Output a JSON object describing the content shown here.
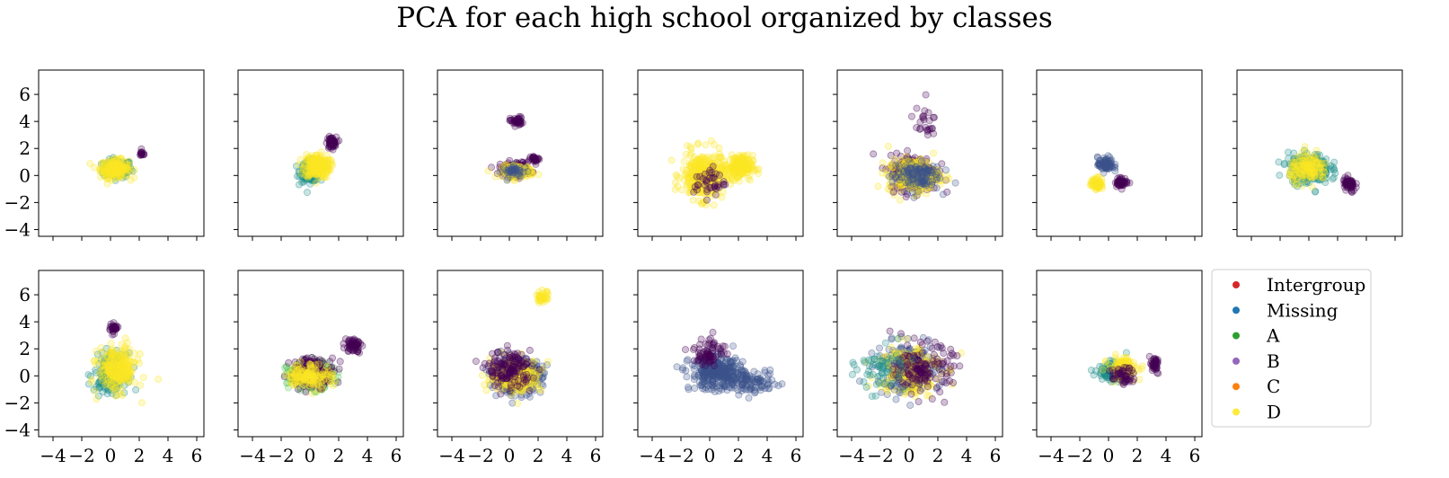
{
  "title": "PCA for each high school organized by classes",
  "chart_data": {
    "type": "scatter",
    "title": "PCA for each high school organized by classes",
    "layout": "2 rows x 7 columns, shared axes",
    "xlim": [
      -5,
      6.5
    ],
    "ylim": [
      -4.5,
      7.8
    ],
    "x_ticks": [
      "−4",
      "−2",
      "0",
      "2",
      "4",
      "6"
    ],
    "x_tick_values": [
      -4,
      -2,
      0,
      2,
      4,
      6
    ],
    "y_ticks": [
      "6",
      "4",
      "2",
      "0",
      "−2",
      "−4"
    ],
    "y_tick_values": [
      6,
      4,
      2,
      0,
      -2,
      -4
    ],
    "grid": false,
    "legend": {
      "placement": "right of last row",
      "entries": [
        {
          "name": "Intergroup",
          "color": "#d62728"
        },
        {
          "name": "Missing",
          "color": "#1f77b4"
        },
        {
          "name": "A",
          "color": "#2ca02c"
        },
        {
          "name": "B",
          "color": "#9467bd"
        },
        {
          "name": "C",
          "color": "#ff7f0e"
        },
        {
          "name": "D",
          "color": "#ffeb3b"
        }
      ]
    },
    "point_colors": {
      "purple": "#440154",
      "teal": "#21918c",
      "blue": "#3b528b",
      "green": "#5ec962",
      "yellow": "#fde725"
    },
    "panels": [
      {
        "clusters": [
          {
            "cx": 0.5,
            "cy": 0.5,
            "sx": 0.9,
            "sy": 0.6,
            "n": 160,
            "c": "teal"
          },
          {
            "cx": 0.3,
            "cy": 0.5,
            "sx": 0.9,
            "sy": 0.6,
            "n": 200,
            "c": "yellow"
          },
          {
            "cx": 2.2,
            "cy": 1.6,
            "sx": 0.2,
            "sy": 0.2,
            "n": 14,
            "c": "purple"
          }
        ]
      },
      {
        "clusters": [
          {
            "cx": 0.0,
            "cy": 0.3,
            "sx": 0.6,
            "sy": 0.7,
            "n": 160,
            "c": "teal"
          },
          {
            "cx": 1.5,
            "cy": 2.4,
            "sx": 0.3,
            "sy": 0.4,
            "n": 60,
            "c": "purple"
          },
          {
            "cx": 0.5,
            "cy": 0.7,
            "sx": 0.8,
            "sy": 0.8,
            "n": 220,
            "c": "yellow"
          }
        ]
      },
      {
        "clusters": [
          {
            "cx": 0.5,
            "cy": 4.0,
            "sx": 0.4,
            "sy": 0.3,
            "n": 40,
            "c": "purple"
          },
          {
            "cx": 1.8,
            "cy": 1.2,
            "sx": 0.3,
            "sy": 0.2,
            "n": 25,
            "c": "purple"
          },
          {
            "cx": 0.4,
            "cy": 0.5,
            "sx": 1.0,
            "sy": 0.5,
            "n": 120,
            "c": "purple"
          },
          {
            "cx": 0.6,
            "cy": 0.3,
            "sx": 1.0,
            "sy": 0.4,
            "n": 120,
            "c": "yellow"
          },
          {
            "cx": 0.4,
            "cy": 0.3,
            "sx": 0.8,
            "sy": 0.4,
            "n": 40,
            "c": "blue"
          }
        ]
      },
      {
        "clusters": [
          {
            "cx": -0.5,
            "cy": 0.0,
            "sx": 1.3,
            "sy": 1.6,
            "n": 300,
            "c": "yellow"
          },
          {
            "cx": 2.0,
            "cy": 0.6,
            "sx": 0.9,
            "sy": 0.8,
            "n": 180,
            "c": "yellow"
          },
          {
            "cx": 0.0,
            "cy": -0.5,
            "sx": 1.0,
            "sy": 1.0,
            "n": 40,
            "c": "purple"
          }
        ]
      },
      {
        "clusters": [
          {
            "cx": 0.3,
            "cy": 0.2,
            "sx": 1.5,
            "sy": 1.2,
            "n": 260,
            "c": "purple"
          },
          {
            "cx": 0.3,
            "cy": 0.0,
            "sx": 1.6,
            "sy": 1.1,
            "n": 220,
            "c": "yellow"
          },
          {
            "cx": 0.5,
            "cy": 0.0,
            "sx": 1.5,
            "sy": 1.0,
            "n": 120,
            "c": "blue"
          },
          {
            "cx": 1.0,
            "cy": 4.0,
            "sx": 0.8,
            "sy": 1.0,
            "n": 25,
            "c": "purple"
          }
        ]
      },
      {
        "clusters": [
          {
            "cx": -0.2,
            "cy": 0.8,
            "sx": 0.5,
            "sy": 0.5,
            "n": 70,
            "c": "blue"
          },
          {
            "cx": -0.8,
            "cy": -0.6,
            "sx": 0.4,
            "sy": 0.4,
            "n": 60,
            "c": "yellow"
          },
          {
            "cx": 0.9,
            "cy": -0.5,
            "sx": 0.4,
            "sy": 0.3,
            "n": 50,
            "c": "purple"
          }
        ]
      },
      {
        "clusters": [
          {
            "cx": 0.0,
            "cy": 0.5,
            "sx": 1.3,
            "sy": 1.0,
            "n": 260,
            "c": "teal"
          },
          {
            "cx": 0.0,
            "cy": 0.5,
            "sx": 1.2,
            "sy": 0.9,
            "n": 140,
            "c": "yellow"
          },
          {
            "cx": 2.8,
            "cy": -0.7,
            "sx": 0.4,
            "sy": 0.5,
            "n": 60,
            "c": "purple"
          }
        ]
      },
      {
        "clusters": [
          {
            "cx": 0.0,
            "cy": 0.2,
            "sx": 1.0,
            "sy": 1.3,
            "n": 180,
            "c": "teal"
          },
          {
            "cx": 0.5,
            "cy": 0.5,
            "sx": 1.2,
            "sy": 1.5,
            "n": 240,
            "c": "yellow"
          },
          {
            "cx": 0.2,
            "cy": 3.5,
            "sx": 0.3,
            "sy": 0.3,
            "n": 30,
            "c": "purple"
          }
        ]
      },
      {
        "clusters": [
          {
            "cx": 0.0,
            "cy": 0.0,
            "sx": 1.4,
            "sy": 0.9,
            "n": 240,
            "c": "green"
          },
          {
            "cx": 0.2,
            "cy": 0.3,
            "sx": 1.4,
            "sy": 1.0,
            "n": 150,
            "c": "purple"
          },
          {
            "cx": 0.0,
            "cy": 0.0,
            "sx": 1.4,
            "sy": 0.8,
            "n": 140,
            "c": "yellow"
          },
          {
            "cx": 3.0,
            "cy": 2.3,
            "sx": 0.5,
            "sy": 0.5,
            "n": 60,
            "c": "purple"
          }
        ]
      },
      {
        "clusters": [
          {
            "cx": 0.5,
            "cy": 0.0,
            "sx": 1.6,
            "sy": 1.1,
            "n": 320,
            "c": "blue"
          },
          {
            "cx": 0.5,
            "cy": 0.0,
            "sx": 1.6,
            "sy": 1.1,
            "n": 220,
            "c": "yellow"
          },
          {
            "cx": 0.0,
            "cy": 0.5,
            "sx": 1.4,
            "sy": 1.2,
            "n": 150,
            "c": "purple"
          },
          {
            "cx": 2.3,
            "cy": 5.8,
            "sx": 0.4,
            "sy": 0.4,
            "n": 35,
            "c": "yellow"
          }
        ]
      },
      {
        "clusters": [
          {
            "cx": 0.5,
            "cy": 0.2,
            "sx": 1.7,
            "sy": 1.1,
            "n": 320,
            "c": "blue"
          },
          {
            "cx": 0.0,
            "cy": 1.8,
            "sx": 1.0,
            "sy": 1.0,
            "n": 70,
            "c": "purple"
          },
          {
            "cx": 3.0,
            "cy": -0.5,
            "sx": 1.5,
            "sy": 0.7,
            "n": 90,
            "c": "blue"
          }
        ]
      },
      {
        "clusters": [
          {
            "cx": 0.0,
            "cy": 0.5,
            "sx": 2.0,
            "sy": 1.7,
            "n": 200,
            "c": "blue"
          },
          {
            "cx": 0.0,
            "cy": 0.5,
            "sx": 2.0,
            "sy": 1.8,
            "n": 180,
            "c": "yellow"
          },
          {
            "cx": 1.0,
            "cy": 0.5,
            "sx": 1.8,
            "sy": 1.6,
            "n": 150,
            "c": "purple"
          },
          {
            "cx": -2.0,
            "cy": 0.5,
            "sx": 1.5,
            "sy": 1.5,
            "n": 60,
            "c": "teal"
          }
        ]
      },
      {
        "clusters": [
          {
            "cx": 0.3,
            "cy": 0.3,
            "sx": 0.9,
            "sy": 0.6,
            "n": 160,
            "c": "teal"
          },
          {
            "cx": 1.0,
            "cy": 0.6,
            "sx": 0.9,
            "sy": 0.7,
            "n": 120,
            "c": "yellow"
          },
          {
            "cx": 3.2,
            "cy": 0.8,
            "sx": 0.3,
            "sy": 0.5,
            "n": 40,
            "c": "purple"
          },
          {
            "cx": 1.0,
            "cy": 0.0,
            "sx": 0.7,
            "sy": 0.6,
            "n": 50,
            "c": "purple"
          }
        ]
      }
    ]
  }
}
